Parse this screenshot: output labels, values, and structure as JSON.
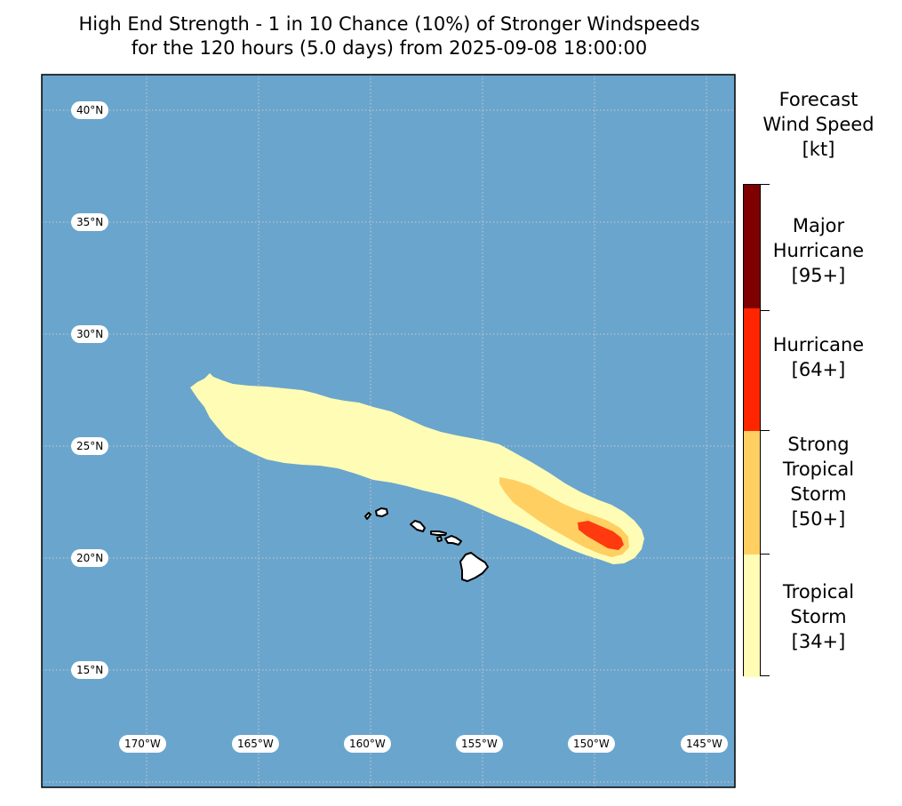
{
  "title": {
    "line1": "High End Strength - 1 in 10 Chance (10%) of Stronger Windspeeds",
    "line2": "for the 120 hours (5.0 days) from 2025-09-08 18:00:00"
  },
  "map": {
    "ocean_color": "#6aa5cd",
    "lat_labels": [
      "40°N",
      "35°N",
      "30°N",
      "25°N",
      "20°N",
      "15°N"
    ],
    "lon_labels": [
      "170°W",
      "165°W",
      "160°W",
      "155°W",
      "150°W",
      "145°W"
    ],
    "extent": {
      "lon_min": -174.7,
      "lon_max": -143.7,
      "lat_min": 10.0,
      "lat_max": 41.6
    },
    "features": [
      "wind-swath-tropical-storm",
      "wind-swath-strong-tropical-storm",
      "wind-swath-hurricane",
      "hawaiian-islands"
    ]
  },
  "colorbar": {
    "title_lines": [
      "Forecast",
      "Wind Speed",
      "[kt]"
    ],
    "categories": [
      {
        "lines": [
          "Major",
          "Hurricane",
          "[95+]"
        ],
        "color": "#7f0000",
        "threshold_kt": 95
      },
      {
        "lines": [
          "Hurricane",
          "[64+]"
        ],
        "color": "#ff2500",
        "threshold_kt": 64
      },
      {
        "lines": [
          "Strong",
          "Tropical",
          "Storm",
          "[50+]"
        ],
        "color": "#ffcf62",
        "threshold_kt": 50
      },
      {
        "lines": [
          "Tropical",
          "Storm",
          "[34+]"
        ],
        "color": "#fffdb5",
        "threshold_kt": 34
      }
    ]
  }
}
